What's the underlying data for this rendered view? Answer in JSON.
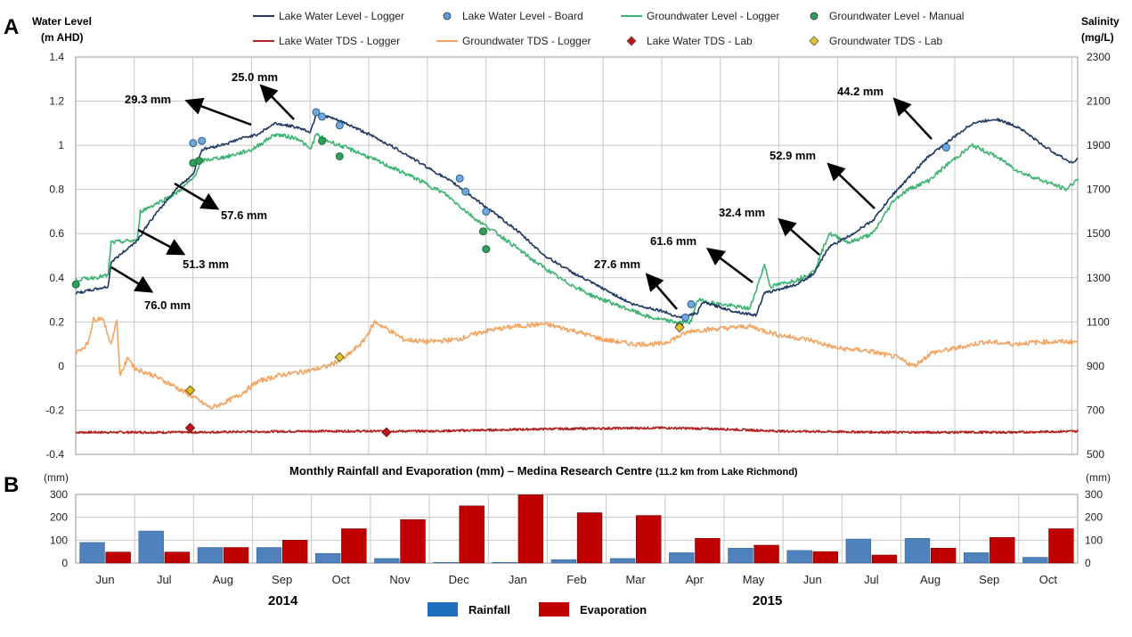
{
  "panel_labels": {
    "a": "A",
    "b": "B"
  },
  "chart_data": [
    {
      "type": "line",
      "ylabel_left": [
        "Water Level",
        "(m AHD)"
      ],
      "ylabel_right": [
        "Salinity",
        "(mg/L)"
      ],
      "ylim_left": [
        -0.4,
        1.4
      ],
      "ylim_right": [
        500,
        2300
      ],
      "yticks_left": [
        "1.4",
        "1.2",
        "1",
        "0.8",
        "0.6",
        "0.4",
        "0.2",
        "0",
        "-0.2",
        "-0.4"
      ],
      "yticks_right": [
        "2300",
        "2100",
        "1900",
        "1700",
        "1500",
        "1300",
        "1100",
        "900",
        "700",
        "500"
      ],
      "grid": true,
      "legend_position": "top",
      "legend": [
        {
          "label": "Lake Water Level - Logger",
          "kind": "line",
          "color": "#1f3864"
        },
        {
          "label": "Lake Water Level - Board",
          "kind": "circle",
          "color": "#5b9bd5"
        },
        {
          "label": "Groundwater Level - Logger",
          "kind": "line",
          "color": "#3cb371"
        },
        {
          "label": "Groundwater Level - Manual",
          "kind": "circle",
          "color": "#2e9e5b"
        },
        {
          "label": "Lake Water TDS - Logger",
          "kind": "line",
          "color": "#b22222"
        },
        {
          "label": "Groundwater TDS - Logger",
          "kind": "line",
          "color": "#f4a460"
        },
        {
          "label": "Lake Water TDS - Lab",
          "kind": "diamond",
          "color": "#c0161b"
        },
        {
          "label": "Groundwater TDS - Lab",
          "kind": "diamond",
          "color": "#e6c229"
        }
      ],
      "x_domain_months": [
        0,
        17.1
      ],
      "series": [
        {
          "name": "Lake Water Level - Logger",
          "axis": "left",
          "color": "#1f3864",
          "points": [
            [
              0,
              0.33
            ],
            [
              0.55,
              0.36
            ],
            [
              0.6,
              0.47
            ],
            [
              1.05,
              0.57
            ],
            [
              1.25,
              0.65
            ],
            [
              1.7,
              0.8
            ],
            [
              2.0,
              0.87
            ],
            [
              2.15,
              0.98
            ],
            [
              2.6,
              1.01
            ],
            [
              2.8,
              1.03
            ],
            [
              3.1,
              1.05
            ],
            [
              3.4,
              1.1
            ],
            [
              3.8,
              1.08
            ],
            [
              4.0,
              1.06
            ],
            [
              4.1,
              1.14
            ],
            [
              4.3,
              1.13
            ],
            [
              4.6,
              1.1
            ],
            [
              5.0,
              1.05
            ],
            [
              5.5,
              0.98
            ],
            [
              6.0,
              0.9
            ],
            [
              6.5,
              0.82
            ],
            [
              7.0,
              0.72
            ],
            [
              7.5,
              0.62
            ],
            [
              8.0,
              0.5
            ],
            [
              8.5,
              0.42
            ],
            [
              9.0,
              0.35
            ],
            [
              9.5,
              0.28
            ],
            [
              10.0,
              0.25
            ],
            [
              10.3,
              0.22
            ],
            [
              10.6,
              0.24
            ],
            [
              10.7,
              0.29
            ],
            [
              11.2,
              0.25
            ],
            [
              11.6,
              0.23
            ],
            [
              11.75,
              0.33
            ],
            [
              12.3,
              0.37
            ],
            [
              12.6,
              0.42
            ],
            [
              12.85,
              0.54
            ],
            [
              13.2,
              0.59
            ],
            [
              13.6,
              0.66
            ],
            [
              13.95,
              0.78
            ],
            [
              14.2,
              0.85
            ],
            [
              14.55,
              0.95
            ],
            [
              14.9,
              1.02
            ],
            [
              15.3,
              1.1
            ],
            [
              15.7,
              1.12
            ],
            [
              16.1,
              1.08
            ],
            [
              16.5,
              1.0
            ],
            [
              16.8,
              0.95
            ],
            [
              17.0,
              0.92
            ],
            [
              17.1,
              0.94
            ]
          ]
        },
        {
          "name": "Groundwater Level - Logger",
          "axis": "left",
          "color": "#3cb371",
          "points": [
            [
              0,
              0.39
            ],
            [
              0.55,
              0.41
            ],
            [
              0.6,
              0.56
            ],
            [
              1.05,
              0.57
            ],
            [
              1.1,
              0.7
            ],
            [
              1.7,
              0.78
            ],
            [
              2.0,
              0.85
            ],
            [
              2.15,
              0.93
            ],
            [
              2.6,
              0.95
            ],
            [
              3.0,
              0.98
            ],
            [
              3.4,
              1.05
            ],
            [
              3.8,
              1.03
            ],
            [
              4.0,
              0.98
            ],
            [
              4.1,
              1.05
            ],
            [
              4.3,
              1.02
            ],
            [
              4.8,
              0.97
            ],
            [
              5.3,
              0.91
            ],
            [
              5.8,
              0.85
            ],
            [
              6.3,
              0.78
            ],
            [
              6.8,
              0.67
            ],
            [
              7.3,
              0.58
            ],
            [
              7.8,
              0.48
            ],
            [
              8.3,
              0.39
            ],
            [
              8.8,
              0.32
            ],
            [
              9.3,
              0.27
            ],
            [
              9.8,
              0.22
            ],
            [
              10.2,
              0.2
            ],
            [
              10.5,
              0.2
            ],
            [
              10.6,
              0.3
            ],
            [
              11.0,
              0.28
            ],
            [
              11.5,
              0.26
            ],
            [
              11.75,
              0.46
            ],
            [
              11.85,
              0.36
            ],
            [
              12.3,
              0.39
            ],
            [
              12.6,
              0.43
            ],
            [
              12.85,
              0.6
            ],
            [
              13.2,
              0.56
            ],
            [
              13.6,
              0.6
            ],
            [
              13.95,
              0.75
            ],
            [
              14.2,
              0.8
            ],
            [
              14.55,
              0.84
            ],
            [
              14.9,
              0.92
            ],
            [
              15.3,
              1.0
            ],
            [
              15.7,
              0.95
            ],
            [
              16.1,
              0.88
            ],
            [
              16.5,
              0.84
            ],
            [
              16.9,
              0.8
            ],
            [
              17.1,
              0.85
            ]
          ]
        },
        {
          "name": "Groundwater TDS - Logger",
          "axis": "right",
          "color": "#f4a460",
          "points": [
            [
              0,
              960
            ],
            [
              0.2,
              1000
            ],
            [
              0.3,
              1110
            ],
            [
              0.45,
              1120
            ],
            [
              0.6,
              1000
            ],
            [
              0.7,
              1110
            ],
            [
              0.75,
              860
            ],
            [
              0.9,
              940
            ],
            [
              1.0,
              890
            ],
            [
              1.3,
              860
            ],
            [
              1.6,
              820
            ],
            [
              2.0,
              760
            ],
            [
              2.3,
              710
            ],
            [
              2.5,
              730
            ],
            [
              2.8,
              770
            ],
            [
              3.1,
              830
            ],
            [
              3.5,
              860
            ],
            [
              4.0,
              880
            ],
            [
              4.3,
              900
            ],
            [
              4.6,
              940
            ],
            [
              4.9,
              1010
            ],
            [
              5.1,
              1100
            ],
            [
              5.3,
              1070
            ],
            [
              5.6,
              1020
            ],
            [
              6.0,
              1010
            ],
            [
              6.5,
              1020
            ],
            [
              7.0,
              1060
            ],
            [
              7.5,
              1080
            ],
            [
              8.0,
              1090
            ],
            [
              8.5,
              1060
            ],
            [
              9.0,
              1020
            ],
            [
              9.5,
              1000
            ],
            [
              10.0,
              1000
            ],
            [
              10.5,
              1060
            ],
            [
              11.0,
              1070
            ],
            [
              11.5,
              1080
            ],
            [
              12.0,
              1040
            ],
            [
              12.5,
              1020
            ],
            [
              13.0,
              980
            ],
            [
              13.5,
              970
            ],
            [
              14.0,
              940
            ],
            [
              14.3,
              900
            ],
            [
              14.6,
              960
            ],
            [
              15.0,
              980
            ],
            [
              15.5,
              1010
            ],
            [
              16.0,
              1000
            ],
            [
              16.5,
              1010
            ],
            [
              17.1,
              1010
            ]
          ]
        },
        {
          "name": "Lake Water TDS - Logger",
          "axis": "right",
          "color": "#b22222",
          "points": [
            [
              0,
              600
            ],
            [
              2,
              600
            ],
            [
              4,
              605
            ],
            [
              6,
              605
            ],
            [
              8,
              615
            ],
            [
              10,
              620
            ],
            [
              11,
              615
            ],
            [
              12,
              605
            ],
            [
              14,
              600
            ],
            [
              16,
              600
            ],
            [
              17.1,
              605
            ]
          ]
        }
      ],
      "markers": {
        "lake_board": [
          [
            2.0,
            1.01
          ],
          [
            2.15,
            1.02
          ],
          [
            4.1,
            1.15
          ],
          [
            4.2,
            1.13
          ],
          [
            4.5,
            1.09
          ],
          [
            6.55,
            0.85
          ],
          [
            6.65,
            0.79
          ],
          [
            7.0,
            0.7
          ],
          [
            10.4,
            0.22
          ],
          [
            10.5,
            0.28
          ],
          [
            14.85,
            0.99
          ]
        ],
        "groundwater_manual": [
          [
            0,
            0.37
          ],
          [
            2.0,
            0.92
          ],
          [
            2.1,
            0.93
          ],
          [
            4.2,
            1.02
          ],
          [
            4.5,
            0.95
          ],
          [
            6.95,
            0.61
          ],
          [
            7.0,
            0.53
          ],
          [
            10.3,
            0.18
          ]
        ],
        "lake_tds_lab": [
          [
            1.95,
            620
          ],
          [
            5.3,
            600
          ]
        ],
        "groundwater_tds_lab": [
          [
            1.95,
            790
          ],
          [
            4.5,
            940
          ],
          [
            10.3,
            1075
          ]
        ]
      },
      "annotations": [
        {
          "text": "76.0 mm"
        },
        {
          "text": "51.3 mm"
        },
        {
          "text": "57.6 mm"
        },
        {
          "text": "29.3 mm"
        },
        {
          "text": "25.0 mm"
        },
        {
          "text": "27.6 mm"
        },
        {
          "text": "61.6 mm"
        },
        {
          "text": "32.4 mm"
        },
        {
          "text": "52.9 mm"
        },
        {
          "text": "44.2 mm"
        }
      ]
    },
    {
      "type": "bar",
      "title": "Monthly Rainfall and Evaporation (mm)  – Medina Research Centre",
      "title_suffix": "(11.2 km from Lake Richmond)",
      "ylabel_left": "(mm)",
      "ylabel_right": "(mm)",
      "ylim": [
        0,
        300
      ],
      "yticks": [
        "300",
        "200",
        "100",
        "0"
      ],
      "categories": [
        "Jun",
        "Jul",
        "Aug",
        "Sep",
        "Oct",
        "Nov",
        "Dec",
        "Jan",
        "Feb",
        "Mar",
        "Apr",
        "May",
        "Jun",
        "Jul",
        "Aug",
        "Sep",
        "Oct"
      ],
      "years": [
        "2014",
        "2015"
      ],
      "series": [
        {
          "name": "Rainfall",
          "color": "#4f81bd",
          "values": [
            90,
            140,
            68,
            68,
            42,
            20,
            3,
            3,
            15,
            20,
            45,
            65,
            55,
            105,
            108,
            45,
            25
          ]
        },
        {
          "name": "Evaporation",
          "color": "#c00000",
          "values": [
            48,
            48,
            68,
            100,
            150,
            190,
            250,
            298,
            220,
            208,
            108,
            78,
            50,
            35,
            65,
            112,
            150
          ]
        }
      ],
      "legend": [
        {
          "label": "Rainfall",
          "color": "#1f6fbf"
        },
        {
          "label": "Evaporation",
          "color": "#c00000"
        }
      ],
      "legend_position": "bottom"
    }
  ]
}
